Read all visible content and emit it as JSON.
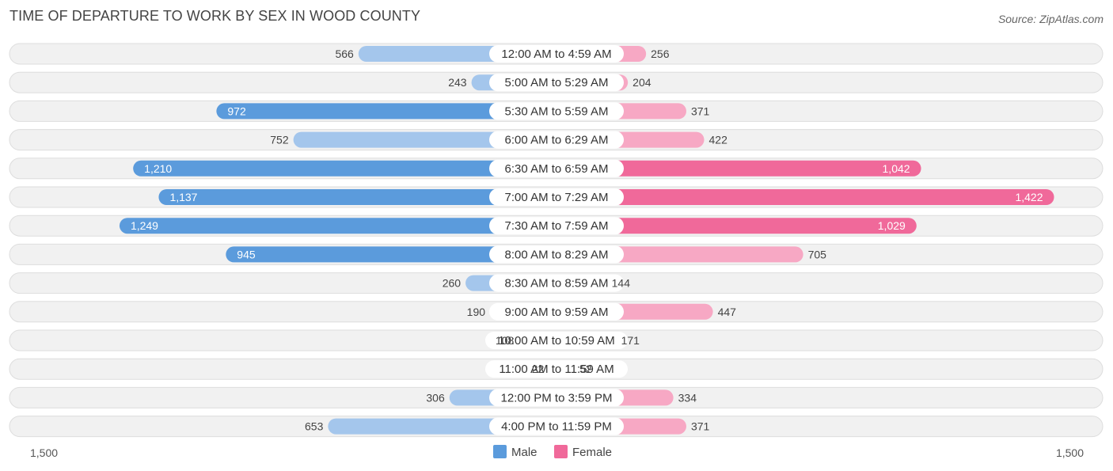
{
  "header": {
    "title": "TIME OF DEPARTURE TO WORK BY SEX IN WOOD COUNTY",
    "source": "Source: ZipAtlas.com"
  },
  "colors": {
    "male_strong": "#5b9bdc",
    "male_light": "#a4c6ec",
    "female_strong": "#f0699a",
    "female_light": "#f7a8c4",
    "row_bg": "#f1f1f1",
    "row_border": "#dddddd"
  },
  "chart_data": {
    "type": "bar",
    "orientation": "horizontal-diverging",
    "title": "TIME OF DEPARTURE TO WORK BY SEX IN WOOD COUNTY",
    "categories": [
      "12:00 AM to 4:59 AM",
      "5:00 AM to 5:29 AM",
      "5:30 AM to 5:59 AM",
      "6:00 AM to 6:29 AM",
      "6:30 AM to 6:59 AM",
      "7:00 AM to 7:29 AM",
      "7:30 AM to 7:59 AM",
      "8:00 AM to 8:29 AM",
      "8:30 AM to 8:59 AM",
      "9:00 AM to 9:59 AM",
      "10:00 AM to 10:59 AM",
      "11:00 AM to 11:59 AM",
      "12:00 PM to 3:59 PM",
      "4:00 PM to 11:59 PM"
    ],
    "series": [
      {
        "name": "Male",
        "values": [
          566,
          243,
          972,
          752,
          1210,
          1137,
          1249,
          945,
          260,
          190,
          108,
          22,
          306,
          653
        ]
      },
      {
        "name": "Female",
        "values": [
          256,
          204,
          371,
          422,
          1042,
          1422,
          1029,
          705,
          144,
          447,
          171,
          52,
          334,
          371
        ]
      }
    ],
    "axis_min_label": "1,500",
    "axis_max_label": "1,500",
    "xlim": [
      -1500,
      1500
    ],
    "legend": [
      "Male",
      "Female"
    ],
    "legend_position": "bottom-center"
  }
}
